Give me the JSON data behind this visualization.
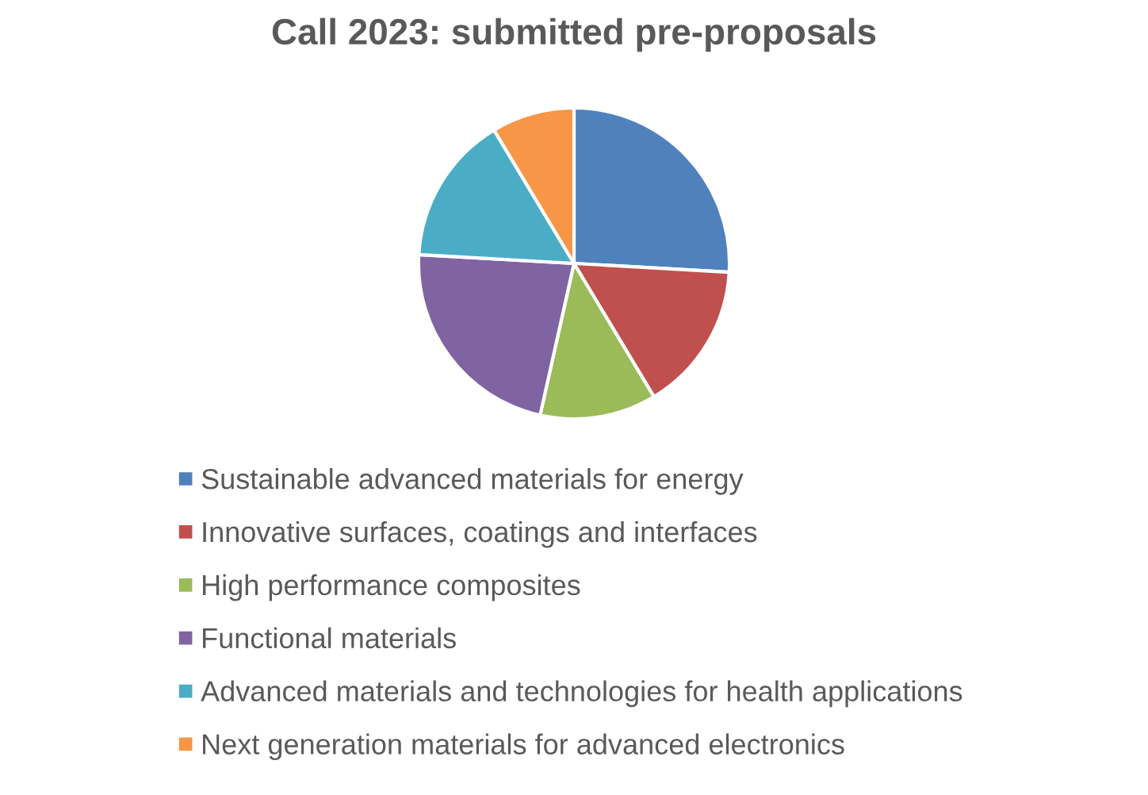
{
  "chart_data": {
    "type": "pie",
    "title": "Call 2023: submitted pre-proposals",
    "categories": [
      "Sustainable advanced materials for energy",
      "Innovative surfaces, coatings and interfaces",
      "High performance composites",
      "Functional materials",
      "Advanced materials and technologies for health applications",
      "Next generation materials for advanced electronics"
    ],
    "values": [
      25.9,
      15.5,
      12.1,
      22.4,
      15.5,
      8.6
    ],
    "colors": [
      "#4f81bd",
      "#c0504d",
      "#9bbb59",
      "#8064a2",
      "#4bacc6",
      "#f79646"
    ],
    "legend": "bottom"
  }
}
